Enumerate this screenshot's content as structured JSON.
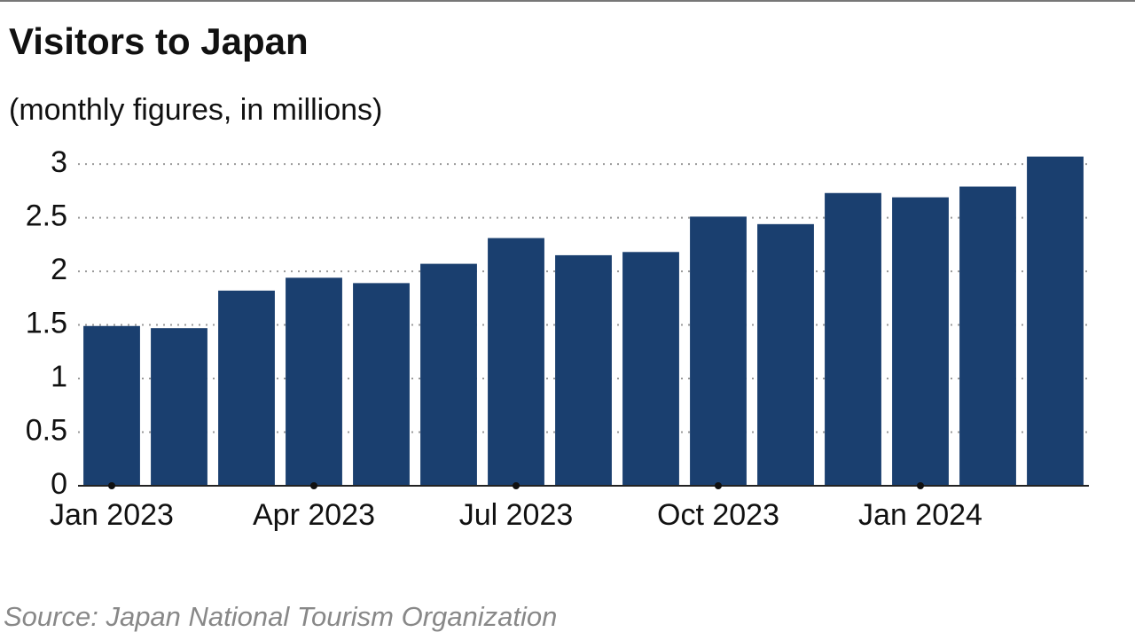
{
  "chart_data": {
    "type": "bar",
    "title": "Visitors to Japan",
    "subtitle": "(monthly figures, in millions)",
    "source": "Source: Japan National Tourism Organization",
    "categories": [
      "Jan 2023",
      null,
      null,
      "Apr 2023",
      null,
      null,
      "Jul 2023",
      null,
      null,
      "Oct 2023",
      null,
      null,
      "Jan 2024",
      null,
      null
    ],
    "values": [
      1.49,
      1.47,
      1.82,
      1.94,
      1.89,
      2.07,
      2.31,
      2.15,
      2.18,
      2.51,
      2.44,
      2.73,
      2.69,
      2.79,
      3.07
    ],
    "color": "#1a3f6f",
    "ylim": [
      0,
      3.1
    ],
    "yticks": [
      0,
      0.5,
      1,
      1.5,
      2,
      2.5,
      3
    ],
    "grid": true
  }
}
